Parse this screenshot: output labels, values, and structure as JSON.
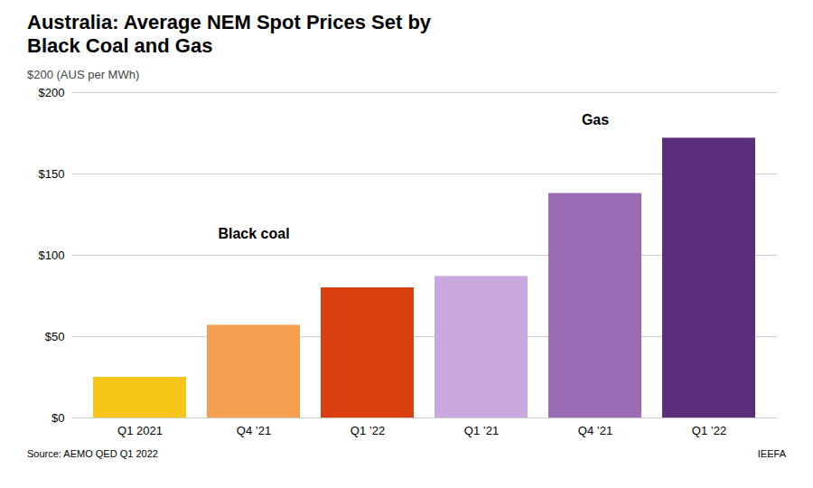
{
  "chart_data": {
    "type": "bar",
    "title": "Australia: Average NEM Spot Prices Set by\nBlack Coal and Gas",
    "y_label": "$200 (AUS per MWh)",
    "categories": [
      "Q1 2021",
      "Q4 ’21",
      "Q1 ’22",
      "Q1 ’21",
      "Q4 ’21",
      "Q1 ’22"
    ],
    "values": [
      25,
      57,
      80,
      87,
      138,
      172
    ],
    "colors": [
      "#F5C518",
      "#F5A050",
      "#D94010",
      "#C9A8E0",
      "#9B6BB5",
      "#5C2D7A"
    ],
    "ylim": [
      0,
      200
    ],
    "yticks": [
      {
        "value": 0,
        "label": "$0"
      },
      {
        "value": 50,
        "label": "$50"
      },
      {
        "value": 100,
        "label": "$100"
      },
      {
        "value": 150,
        "label": "$150"
      },
      {
        "value": 200,
        "label": "$200"
      }
    ],
    "grid": true,
    "annotations": [
      {
        "text": "Black coal",
        "y": 113
      },
      {
        "text": "Gas",
        "y": 183
      }
    ],
    "source": "Source: AEMO QED Q1 2022",
    "brand": "IEEFA"
  }
}
